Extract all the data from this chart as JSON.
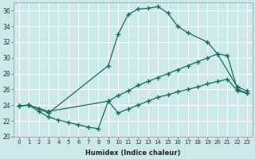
{
  "xlabel": "Humidex (Indice chaleur)",
  "xlim": [
    -0.5,
    23.5
  ],
  "ylim": [
    20,
    37
  ],
  "yticks": [
    20,
    22,
    24,
    26,
    28,
    30,
    32,
    34,
    36
  ],
  "xticks": [
    0,
    1,
    2,
    3,
    4,
    5,
    6,
    7,
    8,
    9,
    10,
    11,
    12,
    13,
    14,
    15,
    16,
    17,
    18,
    19,
    20,
    21,
    22,
    23
  ],
  "bg_color": "#cce9e9",
  "line_color": "#1a6b5a",
  "grid_color": "#ffffff",
  "line1_x": [
    0,
    1,
    2,
    3,
    9,
    10,
    11,
    12,
    13,
    14,
    15,
    16,
    17,
    19,
    20,
    22,
    23
  ],
  "line1_y": [
    23.9,
    24.0,
    23.5,
    23.0,
    29.0,
    33.0,
    35.5,
    36.2,
    36.3,
    36.5,
    35.7,
    34.0,
    33.2,
    32.0,
    30.5,
    26.3,
    25.8
  ],
  "line2_x": [
    0,
    1,
    3,
    9,
    10,
    11,
    12,
    13,
    14,
    15,
    16,
    17,
    18,
    19,
    20,
    21,
    22,
    23
  ],
  "line2_y": [
    23.9,
    24.0,
    23.2,
    24.5,
    25.2,
    25.8,
    26.5,
    27.0,
    27.5,
    28.0,
    28.5,
    29.0,
    29.5,
    30.0,
    30.5,
    30.3,
    26.0,
    25.5
  ],
  "line3_x": [
    0,
    1,
    2,
    3,
    4,
    5,
    6,
    7,
    8,
    9,
    10,
    11,
    12,
    13,
    14,
    15,
    16,
    17,
    18,
    19,
    20,
    21,
    22,
    23
  ],
  "line3_y": [
    23.9,
    24.0,
    23.2,
    22.5,
    22.1,
    21.8,
    21.5,
    21.2,
    21.0,
    24.5,
    23.0,
    23.5,
    24.0,
    24.5,
    25.0,
    25.3,
    25.7,
    26.0,
    26.3,
    26.7,
    27.0,
    27.3,
    25.8,
    25.5
  ]
}
